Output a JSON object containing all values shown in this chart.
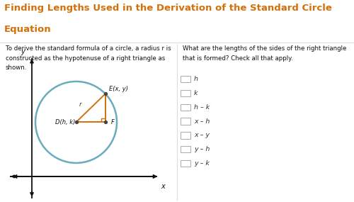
{
  "title_line1": "Finding Lengths Used in the Derivation of the Standard Circle",
  "title_line2": "Equation",
  "title_color": "#D4700A",
  "title_bg": "#F0F0F0",
  "body_bg": "#FFFFFF",
  "left_text": "To derive the standard formula of a circle, a radius r is\nconstructed as the hypotenuse of a right triangle as\nshown.",
  "right_question": "What are the lengths of the sides of the right triangle\nthat is formed? Check all that apply.",
  "right_options": [
    "h",
    "k",
    "h – k",
    "x – h",
    "x – y",
    "y – h",
    "y – k"
  ],
  "circle_color": "#6AACBE",
  "orange_color": "#D4700A",
  "dot_color": "#444444",
  "axis_color": "#111111"
}
